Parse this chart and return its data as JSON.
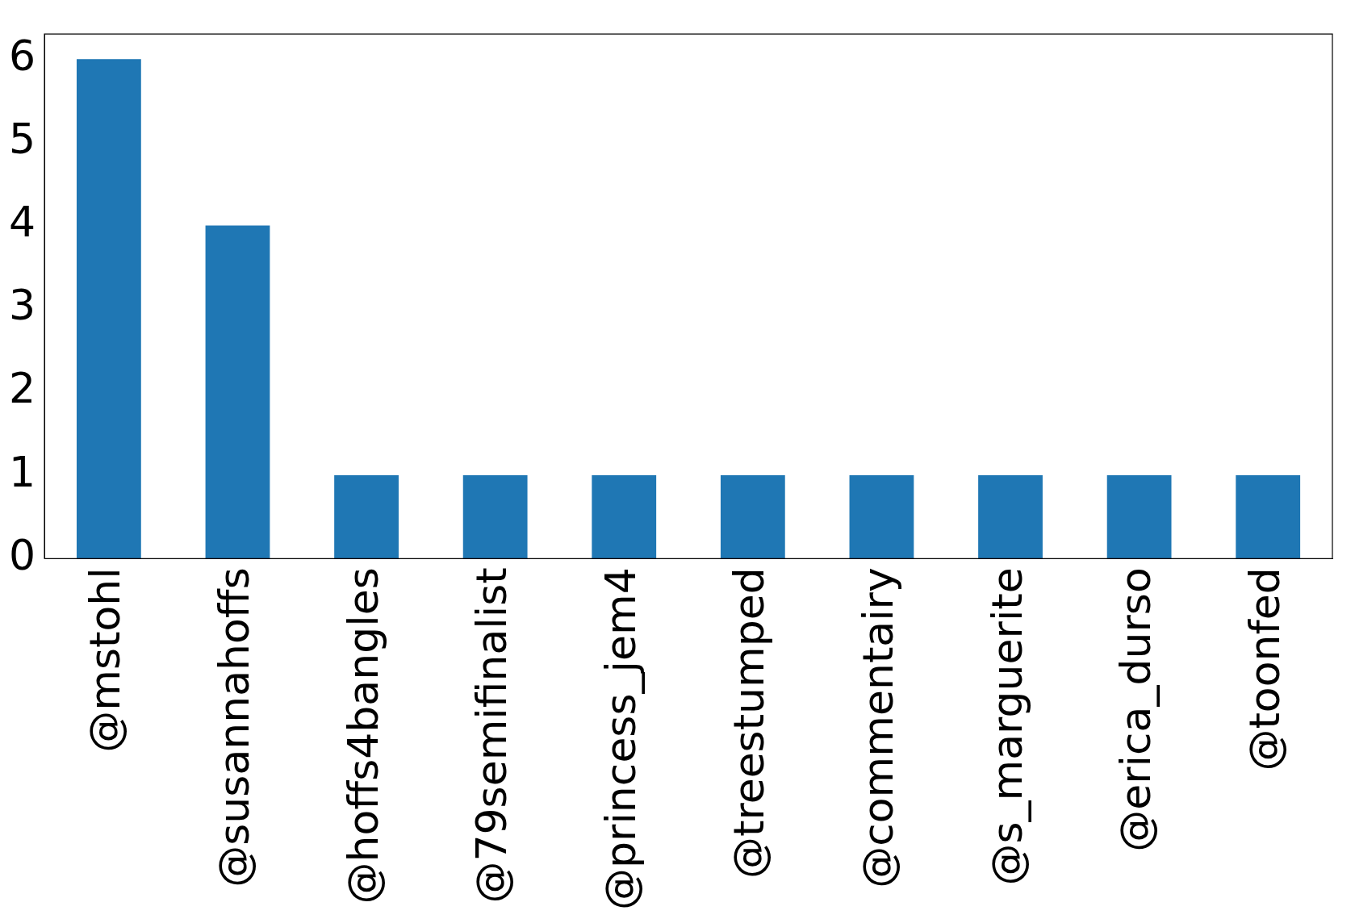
{
  "chart_data": {
    "type": "bar",
    "categories": [
      "@mstohl",
      "@susannahoffs",
      "@hoffs4bangles",
      "@79semifinalist",
      "@princess_jem4",
      "@treestumped",
      "@commentairy",
      "@s_marguerite",
      "@erica_durso",
      "@toonfed"
    ],
    "values": [
      6,
      4,
      1,
      1,
      1,
      1,
      1,
      1,
      1,
      1
    ],
    "color": "#1f77b4",
    "ylim": [
      0,
      6.3
    ],
    "yticks": [
      0,
      1,
      2,
      3,
      4,
      5,
      6
    ],
    "grid": false,
    "legend": false
  }
}
